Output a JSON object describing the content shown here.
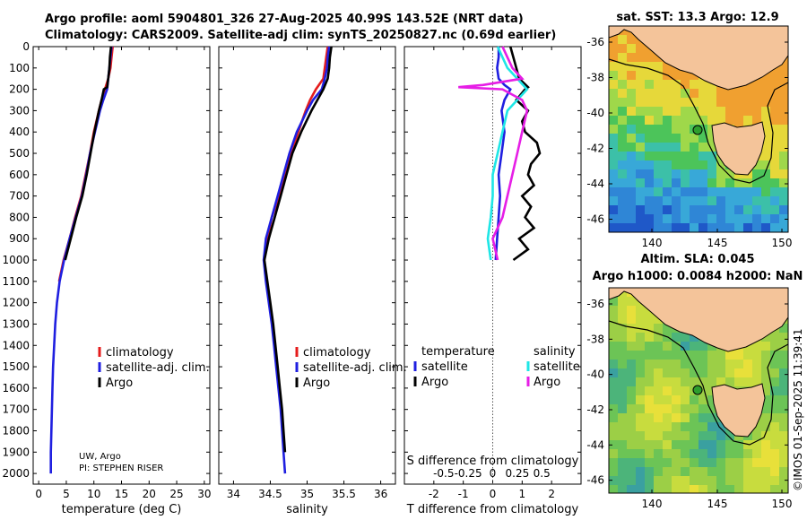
{
  "header": {
    "title_line1": "Argo profile: aoml 5904801_326 27-Aug-2025 40.99S 143.52E (NRT data)",
    "title_line2": "Climatology: CARS2009. Satellite-adj clim: synTS_20250827.nc (0.69d earlier)"
  },
  "colors": {
    "climatology": "#e51c1c",
    "satellite": "#1f1fe0",
    "argo": "#000000",
    "sal_satellite": "#1ee6e6",
    "sal_argo": "#e61ee6",
    "land": "#f4c49a"
  },
  "icons": {
    "legend_marker": "short-vertical-line"
  },
  "chart_data": [
    {
      "id": "temperature",
      "type": "line",
      "xlabel": "temperature (deg C)",
      "ylabel": "",
      "xlim": [
        -1,
        31
      ],
      "ylim": [
        0,
        2050
      ],
      "y_inverted": true,
      "xticks": [
        0,
        5,
        10,
        15,
        20,
        25,
        30
      ],
      "yticks": [
        0,
        100,
        200,
        300,
        400,
        500,
        600,
        700,
        800,
        900,
        1000,
        1100,
        1200,
        1300,
        1400,
        1500,
        1600,
        1700,
        1800,
        1900,
        2000
      ],
      "legend": [
        "climatology",
        "satellite-adj. clim.",
        "Argo"
      ],
      "annotation_lines": [
        "UW, Argo",
        "PI: STEPHEN RISER"
      ],
      "series": [
        {
          "name": "climatology",
          "color": "#e51c1c",
          "depth": [
            0,
            50,
            100,
            150,
            200,
            250,
            300,
            400,
            500,
            600,
            700,
            800,
            900,
            1000,
            1100
          ],
          "values": [
            13.4,
            13.2,
            13.0,
            12.6,
            12.0,
            11.4,
            10.9,
            10.0,
            9.3,
            8.5,
            7.7,
            6.6,
            5.6,
            4.5,
            3.7
          ]
        },
        {
          "name": "satellite-adj. clim.",
          "color": "#1f1fe0",
          "depth": [
            0,
            50,
            100,
            150,
            200,
            250,
            300,
            400,
            500,
            600,
            700,
            800,
            900,
            1000,
            1100,
            1200,
            1300,
            1400,
            1500,
            1600,
            1700,
            1800,
            1900,
            2000
          ],
          "values": [
            13.2,
            13.0,
            12.8,
            12.6,
            12.4,
            11.7,
            11.1,
            10.2,
            9.3,
            8.6,
            7.8,
            6.7,
            5.6,
            4.6,
            3.8,
            3.3,
            3.0,
            2.8,
            2.6,
            2.5,
            2.4,
            2.3,
            2.2,
            2.2
          ]
        },
        {
          "name": "Argo",
          "color": "#000000",
          "depth": [
            0,
            50,
            100,
            150,
            190,
            200,
            250,
            300,
            400,
            500,
            600,
            700,
            800,
            900,
            1000
          ],
          "values": [
            13.1,
            12.9,
            12.8,
            12.6,
            12.4,
            11.8,
            11.4,
            10.9,
            10.1,
            9.4,
            8.7,
            7.9,
            6.8,
            5.8,
            4.8
          ]
        }
      ]
    },
    {
      "id": "salinity",
      "type": "line",
      "xlabel": "salinity",
      "xlim": [
        33.8,
        36.2
      ],
      "ylim": [
        0,
        2050
      ],
      "y_inverted": true,
      "xticks": [
        34,
        34.5,
        35,
        35.5,
        36
      ],
      "legend": [
        "climatology",
        "satellite-adj. clim.",
        "Argo"
      ],
      "series": [
        {
          "name": "climatology",
          "color": "#e51c1c",
          "depth": [
            0,
            50,
            100,
            150,
            200,
            250,
            300,
            400,
            500,
            600,
            700,
            800,
            900,
            1000
          ],
          "values": [
            35.28,
            35.26,
            35.24,
            35.22,
            35.12,
            35.04,
            34.98,
            34.88,
            34.78,
            34.7,
            34.62,
            34.52,
            34.46,
            34.42
          ]
        },
        {
          "name": "satellite-adj. clim.",
          "color": "#1f1fe0",
          "depth": [
            0,
            50,
            100,
            150,
            200,
            250,
            300,
            400,
            500,
            600,
            700,
            800,
            900,
            1000,
            1100,
            1200,
            1300,
            1400,
            1500,
            1600,
            1700,
            1800,
            1900,
            2000
          ],
          "values": [
            35.3,
            35.28,
            35.27,
            35.24,
            35.2,
            35.08,
            35.0,
            34.86,
            34.76,
            34.68,
            34.6,
            34.52,
            34.44,
            34.41,
            34.44,
            34.48,
            34.52,
            34.55,
            34.58,
            34.61,
            34.64,
            34.66,
            34.68,
            34.7
          ]
        },
        {
          "name": "Argo",
          "color": "#000000",
          "depth": [
            0,
            50,
            100,
            150,
            200,
            250,
            300,
            400,
            500,
            600,
            700,
            800,
            900,
            1000,
            1100,
            1200,
            1300,
            1400,
            1500,
            1600,
            1700,
            1800,
            1900
          ],
          "values": [
            35.33,
            35.31,
            35.3,
            35.28,
            35.22,
            35.14,
            35.06,
            34.92,
            34.8,
            34.72,
            34.64,
            34.56,
            34.48,
            34.42,
            34.46,
            34.5,
            34.54,
            34.57,
            34.6,
            34.63,
            34.66,
            34.68,
            34.7
          ]
        }
      ]
    },
    {
      "id": "differences",
      "type": "line",
      "xlabel": "T difference from climatology",
      "xlabel_top": "S difference from climatology",
      "xlim": [
        -3,
        3
      ],
      "xticks": [
        -2,
        -1,
        0,
        1,
        2
      ],
      "s_xlim": [
        -0.9,
        0.9
      ],
      "s_xticks": [
        "-0.5",
        "-0.25",
        "0",
        "0.25",
        "0.5"
      ],
      "ylim": [
        0,
        2050
      ],
      "y_inverted": true,
      "legend_temperature_heading": "temperature",
      "legend_salinity_heading": "salinity",
      "legend_temperature": [
        "satellite",
        "Argo"
      ],
      "legend_salinity": [
        "satellite",
        "Argo"
      ],
      "series": [
        {
          "name": "temperature satellite",
          "color": "#1f1fe0",
          "depth": [
            0,
            50,
            100,
            150,
            180,
            200,
            250,
            300,
            400,
            500,
            600,
            700,
            800,
            900,
            1000
          ],
          "values": [
            0.2,
            0.2,
            0.15,
            0.2,
            0.4,
            0.6,
            0.4,
            0.3,
            0.4,
            0.3,
            0.2,
            0.25,
            0.2,
            0.15,
            0.1
          ]
        },
        {
          "name": "temperature Argo",
          "color": "#000000",
          "depth": [
            0,
            50,
            100,
            150,
            190,
            200,
            250,
            300,
            350,
            400,
            450,
            500,
            550,
            600,
            650,
            700,
            750,
            800,
            850,
            900,
            950,
            1000
          ],
          "values": [
            0.6,
            0.7,
            0.8,
            0.9,
            1.2,
            1.1,
            0.8,
            1.2,
            1.0,
            1.1,
            1.5,
            1.6,
            1.3,
            1.2,
            1.4,
            1.0,
            1.3,
            1.1,
            1.4,
            0.9,
            1.2,
            0.7
          ]
        },
        {
          "name": "salinity satellite",
          "color": "#1ee6e6",
          "depth": [
            0,
            50,
            100,
            150,
            200,
            250,
            300,
            400,
            500,
            600,
            700,
            800,
            900,
            1000
          ],
          "values": [
            0.05,
            0.1,
            0.15,
            0.25,
            0.35,
            0.25,
            0.15,
            0.1,
            0.05,
            0.0,
            0.0,
            -0.02,
            -0.05,
            -0.02
          ]
        },
        {
          "name": "salinity Argo",
          "color": "#e61ee6",
          "depth": [
            0,
            50,
            100,
            150,
            180,
            190,
            200,
            250,
            300,
            400,
            500,
            600,
            700,
            800,
            900,
            1000
          ],
          "values": [
            0.1,
            0.15,
            0.2,
            0.3,
            -0.1,
            -0.35,
            0.1,
            0.3,
            0.35,
            0.3,
            0.25,
            0.2,
            0.15,
            0.1,
            0.0,
            0.05
          ]
        }
      ]
    }
  ],
  "maps": {
    "sst": {
      "title": "sat. SST: 13.3 Argo: 12.9",
      "lat_ticks": [
        "-36",
        "-38",
        "-40",
        "-42",
        "-44",
        "-46"
      ],
      "lon_ticks": [
        "140",
        "145",
        "150"
      ]
    },
    "sla": {
      "title_line1": "Altim. SLA: 0.045",
      "title_line2": "Argo h1000: 0.0084 h2000: NaN",
      "lat_ticks": [
        "-36",
        "-38",
        "-40",
        "-42",
        "-44",
        "-46"
      ],
      "lon_ticks": [
        "140",
        "145",
        "150"
      ]
    },
    "credit": "©IMOS 01-Sep-2025 11:39:41"
  }
}
